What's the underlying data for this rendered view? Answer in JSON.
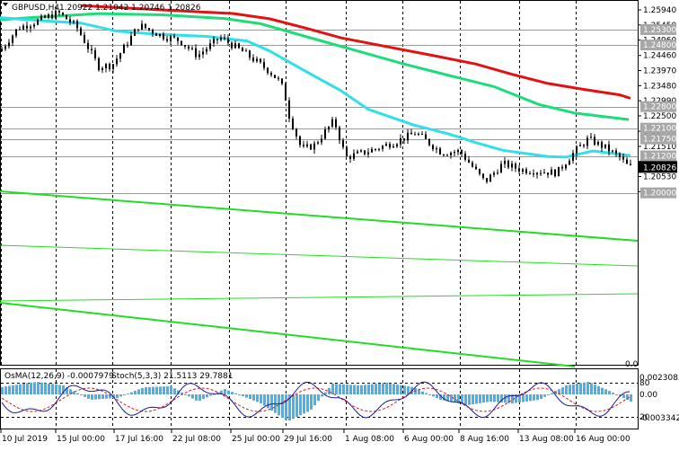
{
  "chart_header": {
    "symbol": "GBPUSD,H4",
    "ohlc": "1.20922 1.21042 1.20746 1.20826"
  },
  "price_axis": {
    "ticks": [
      "1.25940",
      "1.25450",
      "1.24960",
      "1.24460",
      "1.23970",
      "1.23480",
      "1.22990",
      "1.22500",
      "1.22000",
      "1.21510",
      "1.21020",
      "1.20530",
      "1.20040"
    ],
    "highlighted_levels": [
      "1.25300",
      "1.24800",
      "1.22800",
      "1.22100",
      "1.21750",
      "1.21200",
      "1.20000"
    ],
    "current_price": "1.20826",
    "top_marker": "0.0"
  },
  "indicator_header": {
    "osma": "OsMA(12,26,9) -0.0007979",
    "stoch": "Stoch(5,3,3) 21.5113 29.7881"
  },
  "indicator_axis": {
    "ticks": [
      "0.00230850",
      "0.00",
      "-0.00334227"
    ],
    "stoch_levels": [
      "80",
      "20"
    ]
  },
  "time_axis": [
    "10 Jul 2019",
    "15 Jul 00:00",
    "17 Jul 16:00",
    "22 Jul 08:00",
    "25 Jul 00:00",
    "29 Jul 16:00",
    "1 Aug 08:00",
    "6 Aug 00:00",
    "8 Aug 16:00",
    "13 Aug 08:00",
    "16 Aug 00:00"
  ],
  "colors": {
    "ema200": "#e31212",
    "ema144": "#1ddc7a",
    "ema50": "#2fe0e8",
    "channel": "#22dd22",
    "histogram": "#41b4ee",
    "stoch_main": "#1d1a9e",
    "stoch_signal": "#e01a1a",
    "label_bg": "#a7a7a7",
    "candles": "#000000"
  }
}
